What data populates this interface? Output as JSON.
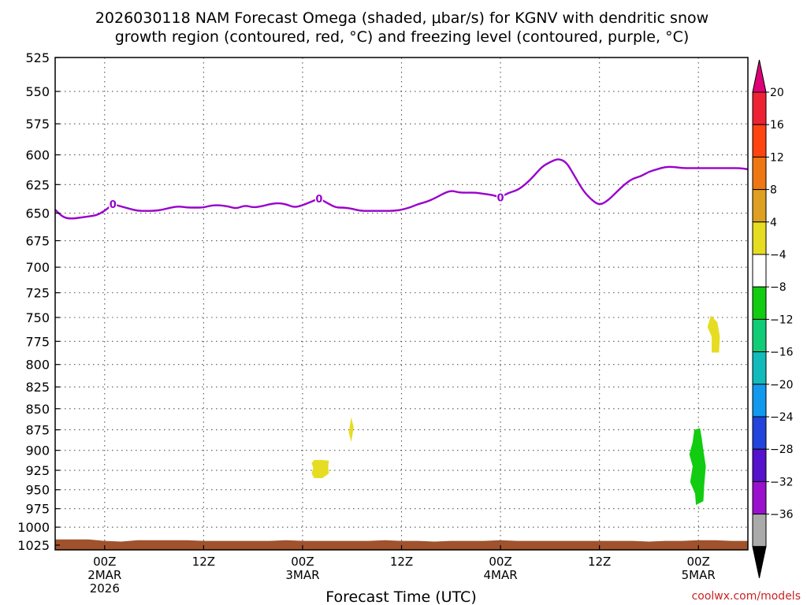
{
  "chart_data": {
    "type": "heatmap",
    "title_lines": [
      "2026030118 NAM Forecast Omega (shaded, μbar/s) for KGNV with dendritic snow",
      "growth region (contoured, red, °C) and freezing level (contoured, purple, °C)"
    ],
    "xlabel": "Forecast Time (UTC)",
    "credit": "coolwx.com/models",
    "x_unit": "hours since 2026-03-01 18Z",
    "x_range": [
      0,
      84
    ],
    "y_ticks": [
      525,
      550,
      575,
      600,
      625,
      650,
      675,
      700,
      725,
      750,
      775,
      800,
      825,
      850,
      875,
      900,
      925,
      950,
      975,
      1000,
      1025
    ],
    "y_range": [
      525,
      1025
    ],
    "x_ticks": [
      {
        "x": 6,
        "lines": [
          "00Z",
          "2MAR",
          "2026"
        ]
      },
      {
        "x": 18,
        "lines": [
          "12Z"
        ]
      },
      {
        "x": 30,
        "lines": [
          "00Z",
          "3MAR"
        ]
      },
      {
        "x": 42,
        "lines": [
          "12Z"
        ]
      },
      {
        "x": 54,
        "lines": [
          "00Z",
          "4MAR"
        ]
      },
      {
        "x": 66,
        "lines": [
          "12Z"
        ]
      },
      {
        "x": 78,
        "lines": [
          "00Z",
          "5MAR"
        ]
      }
    ],
    "grid": true,
    "colorbar": {
      "labels": [
        "20",
        "16",
        "12",
        "8",
        "4",
        "−4",
        "−8",
        "−12",
        "−16",
        "−20",
        "−24",
        "−28",
        "−32",
        "−36"
      ],
      "colors": [
        "#dd0077",
        "#ee2233",
        "#ff4411",
        "#ee7711",
        "#dda022",
        "#e6dd22",
        "#ffffff",
        "#11cc11",
        "#11cc77",
        "#11bbbb",
        "#1199ee",
        "#2244dd",
        "#5511cc",
        "#9911cc",
        "#aaaaaa",
        "#000000"
      ]
    },
    "freezing_level": {
      "label": "0",
      "color": "#9900cc",
      "x": [
        0,
        1,
        2,
        3,
        4,
        5,
        6,
        7,
        8,
        9,
        10,
        11,
        12,
        13,
        14,
        15,
        16,
        17,
        18,
        19,
        20,
        21,
        22,
        23,
        24,
        25,
        26,
        27,
        28,
        29,
        30,
        31,
        32,
        33,
        34,
        35,
        36,
        37,
        38,
        39,
        40,
        41,
        42,
        43,
        44,
        45,
        46,
        47,
        48,
        49,
        50,
        51,
        52,
        53,
        54,
        55,
        56,
        57,
        58,
        59,
        60,
        61,
        62,
        63,
        64,
        65,
        66,
        67,
        68,
        69,
        70,
        71,
        72,
        73,
        74,
        75,
        76,
        77,
        78,
        79,
        80,
        81,
        82,
        83,
        84
      ],
      "y": [
        647,
        654,
        655,
        654,
        653,
        652,
        648,
        642,
        644,
        646,
        648,
        648,
        648,
        647,
        645,
        644,
        645,
        645,
        645,
        643,
        643,
        644,
        646,
        643,
        645,
        644,
        642,
        641,
        642,
        645,
        643,
        640,
        637,
        641,
        645,
        645,
        646,
        648,
        648,
        648,
        648,
        648,
        647,
        645,
        642,
        640,
        637,
        633,
        630,
        632,
        632,
        632,
        633,
        634,
        636,
        632,
        630,
        625,
        618,
        610,
        606,
        603,
        606,
        618,
        630,
        638,
        643,
        639,
        632,
        625,
        620,
        618,
        614,
        612,
        610,
        610,
        611,
        611,
        611,
        611,
        611,
        611,
        611,
        611,
        612
      ],
      "contour_label_x": [
        7,
        32,
        54
      ]
    },
    "omega_regions": [
      {
        "value": 4,
        "color": "#e6dd22",
        "points": [
          [
            31.1,
            916
          ],
          [
            31.4,
            912
          ],
          [
            32.3,
            912
          ],
          [
            33.2,
            913
          ],
          [
            33.1,
            920
          ],
          [
            33.2,
            929
          ],
          [
            32.4,
            935
          ],
          [
            31.4,
            935
          ],
          [
            31.1,
            929
          ],
          [
            31.3,
            922
          ]
        ]
      },
      {
        "value": 4,
        "color": "#e6dd22",
        "points": [
          [
            35.9,
            860
          ],
          [
            36.2,
            872
          ],
          [
            35.9,
            890
          ],
          [
            35.6,
            878
          ]
        ]
      },
      {
        "value": 4,
        "color": "#e6dd22",
        "points": [
          [
            79.5,
            748
          ],
          [
            80.3,
            755
          ],
          [
            80.6,
            770
          ],
          [
            80.5,
            787
          ],
          [
            79.6,
            787
          ],
          [
            79.6,
            770
          ],
          [
            79.1,
            760
          ]
        ]
      },
      {
        "value": -8,
        "color": "#11cc11",
        "points": [
          [
            77.5,
            875
          ],
          [
            78.2,
            873
          ],
          [
            78.4,
            885
          ],
          [
            78.6,
            900
          ],
          [
            78.9,
            920
          ],
          [
            78.7,
            945
          ],
          [
            78.6,
            965
          ],
          [
            77.7,
            970
          ],
          [
            77.6,
            955
          ],
          [
            77.0,
            940
          ],
          [
            77.3,
            920
          ],
          [
            76.9,
            905
          ],
          [
            77.3,
            890
          ]
        ]
      }
    ],
    "terrain": {
      "color": "#a0522d",
      "x": [
        0,
        2,
        4,
        6,
        8,
        10,
        12,
        14,
        16,
        18,
        20,
        22,
        24,
        26,
        28,
        30,
        32,
        34,
        36,
        38,
        40,
        42,
        44,
        46,
        48,
        50,
        52,
        54,
        56,
        58,
        60,
        62,
        64,
        66,
        68,
        70,
        72,
        74,
        76,
        78,
        80,
        82,
        84
      ],
      "top": [
        1017,
        1017,
        1017,
        1019,
        1020,
        1018,
        1018,
        1018,
        1018,
        1019,
        1019,
        1019,
        1019,
        1019,
        1018,
        1019,
        1019,
        1019,
        1019,
        1019,
        1018,
        1019,
        1019,
        1020,
        1019,
        1019,
        1019,
        1018,
        1019,
        1019,
        1019,
        1019,
        1019,
        1019,
        1019,
        1019,
        1020,
        1019,
        1019,
        1018,
        1018,
        1019,
        1019
      ]
    }
  }
}
